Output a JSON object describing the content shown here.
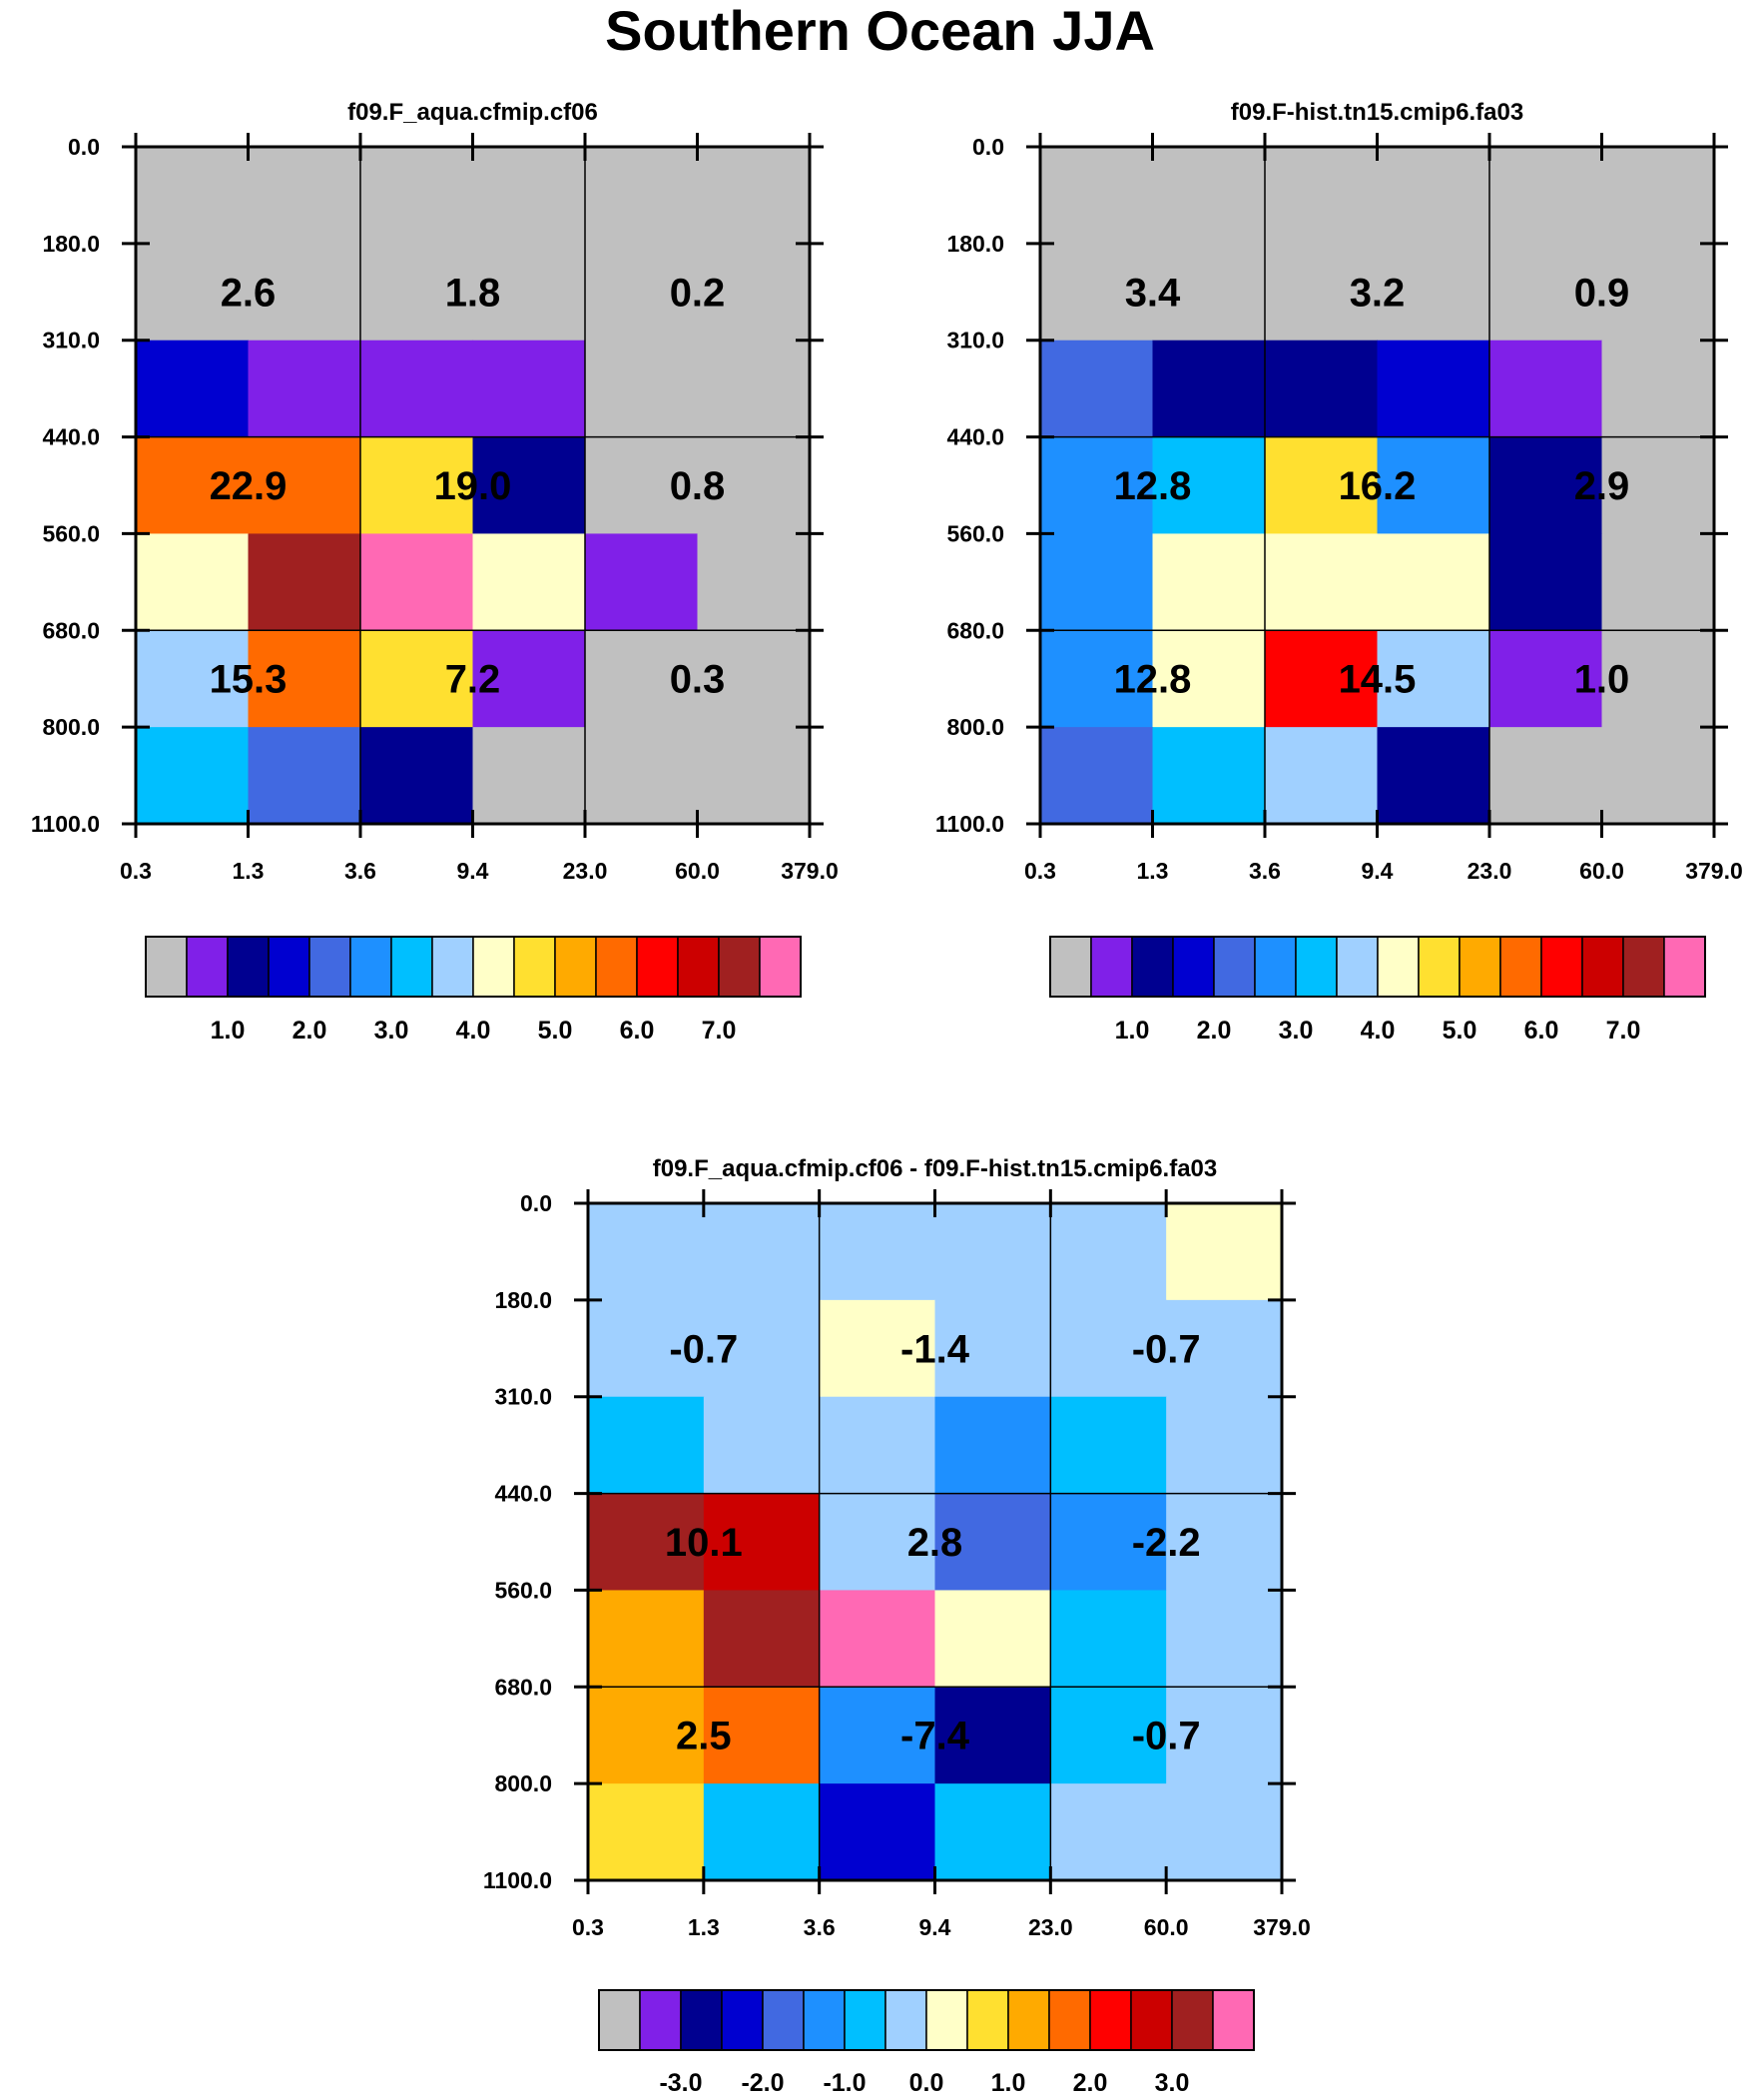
{
  "title": "Southern Ocean JJA",
  "palette": [
    "#c0c0c0",
    "#8020e8",
    "#000090",
    "#0000d0",
    "#4169e1",
    "#1e90ff",
    "#00bfff",
    "#a0d0ff",
    "#ffffc8",
    "#ffe030",
    "#ffaa00",
    "#ff6a00",
    "#ff0000",
    "#cc0000",
    "#a02020",
    "#ff69b4"
  ],
  "chart_data": [
    {
      "type": "heatmap",
      "title": "f09.F_aqua.cfmip.cf06",
      "x_ticks": [
        "0.3",
        "1.3",
        "3.6",
        "9.4",
        "23.0",
        "60.0",
        "379.0"
      ],
      "y_ticks": [
        "0.0",
        "180.0",
        "310.0",
        "440.0",
        "560.0",
        "680.0",
        "800.0",
        "1100.0"
      ],
      "cells": [
        [
          0,
          0,
          0,
          0,
          0,
          0
        ],
        [
          0,
          0,
          0,
          0,
          0,
          0
        ],
        [
          3,
          1,
          1,
          1,
          0,
          0
        ],
        [
          11,
          11,
          9,
          2,
          0,
          0
        ],
        [
          8,
          14,
          15,
          8,
          1,
          0
        ],
        [
          7,
          11,
          9,
          1,
          0,
          0
        ],
        [
          6,
          4,
          2,
          0,
          0,
          0
        ]
      ],
      "box_values": [
        [
          "2.6",
          "1.8",
          "0.2"
        ],
        [
          "22.9",
          "19.0",
          "0.8"
        ],
        [
          "15.3",
          "7.2",
          "0.3"
        ]
      ],
      "colorbar_labels": [
        "1.0",
        "2.0",
        "3.0",
        "4.0",
        "5.0",
        "6.0",
        "7.0"
      ]
    },
    {
      "type": "heatmap",
      "title": "f09.F-hist.tn15.cmip6.fa03",
      "x_ticks": [
        "0.3",
        "1.3",
        "3.6",
        "9.4",
        "23.0",
        "60.0",
        "379.0"
      ],
      "y_ticks": [
        "0.0",
        "180.0",
        "310.0",
        "440.0",
        "560.0",
        "680.0",
        "800.0",
        "1100.0"
      ],
      "cells": [
        [
          0,
          0,
          0,
          0,
          0,
          0
        ],
        [
          0,
          0,
          0,
          0,
          0,
          0
        ],
        [
          4,
          2,
          2,
          3,
          1,
          0
        ],
        [
          5,
          6,
          9,
          5,
          2,
          0
        ],
        [
          5,
          8,
          8,
          8,
          2,
          0
        ],
        [
          5,
          8,
          12,
          7,
          1,
          0
        ],
        [
          4,
          6,
          7,
          2,
          0,
          0
        ]
      ],
      "box_values": [
        [
          "3.4",
          "3.2",
          "0.9"
        ],
        [
          "12.8",
          "16.2",
          "2.9"
        ],
        [
          "12.8",
          "14.5",
          "1.0"
        ]
      ],
      "colorbar_labels": [
        "1.0",
        "2.0",
        "3.0",
        "4.0",
        "5.0",
        "6.0",
        "7.0"
      ]
    },
    {
      "type": "heatmap",
      "title": "f09.F_aqua.cfmip.cf06 - f09.F-hist.tn15.cmip6.fa03",
      "x_ticks": [
        "0.3",
        "1.3",
        "3.6",
        "9.4",
        "23.0",
        "60.0",
        "379.0"
      ],
      "y_ticks": [
        "0.0",
        "180.0",
        "310.0",
        "440.0",
        "560.0",
        "680.0",
        "800.0",
        "1100.0"
      ],
      "cells": [
        [
          7,
          7,
          7,
          7,
          7,
          8
        ],
        [
          7,
          7,
          8,
          7,
          7,
          7
        ],
        [
          6,
          7,
          7,
          5,
          6,
          7
        ],
        [
          14,
          13,
          7,
          4,
          5,
          7
        ],
        [
          10,
          14,
          15,
          8,
          6,
          7
        ],
        [
          10,
          11,
          5,
          2,
          6,
          7
        ],
        [
          9,
          6,
          3,
          6,
          7,
          7
        ]
      ],
      "box_values": [
        [
          "-0.7",
          "-1.4",
          "-0.7"
        ],
        [
          "10.1",
          "2.8",
          "-2.2"
        ],
        [
          "2.5",
          "-7.4",
          "-0.7"
        ]
      ],
      "colorbar_labels": [
        "-3.0",
        "-2.0",
        "-1.0",
        "0.0",
        "1.0",
        "2.0",
        "3.0"
      ]
    }
  ]
}
